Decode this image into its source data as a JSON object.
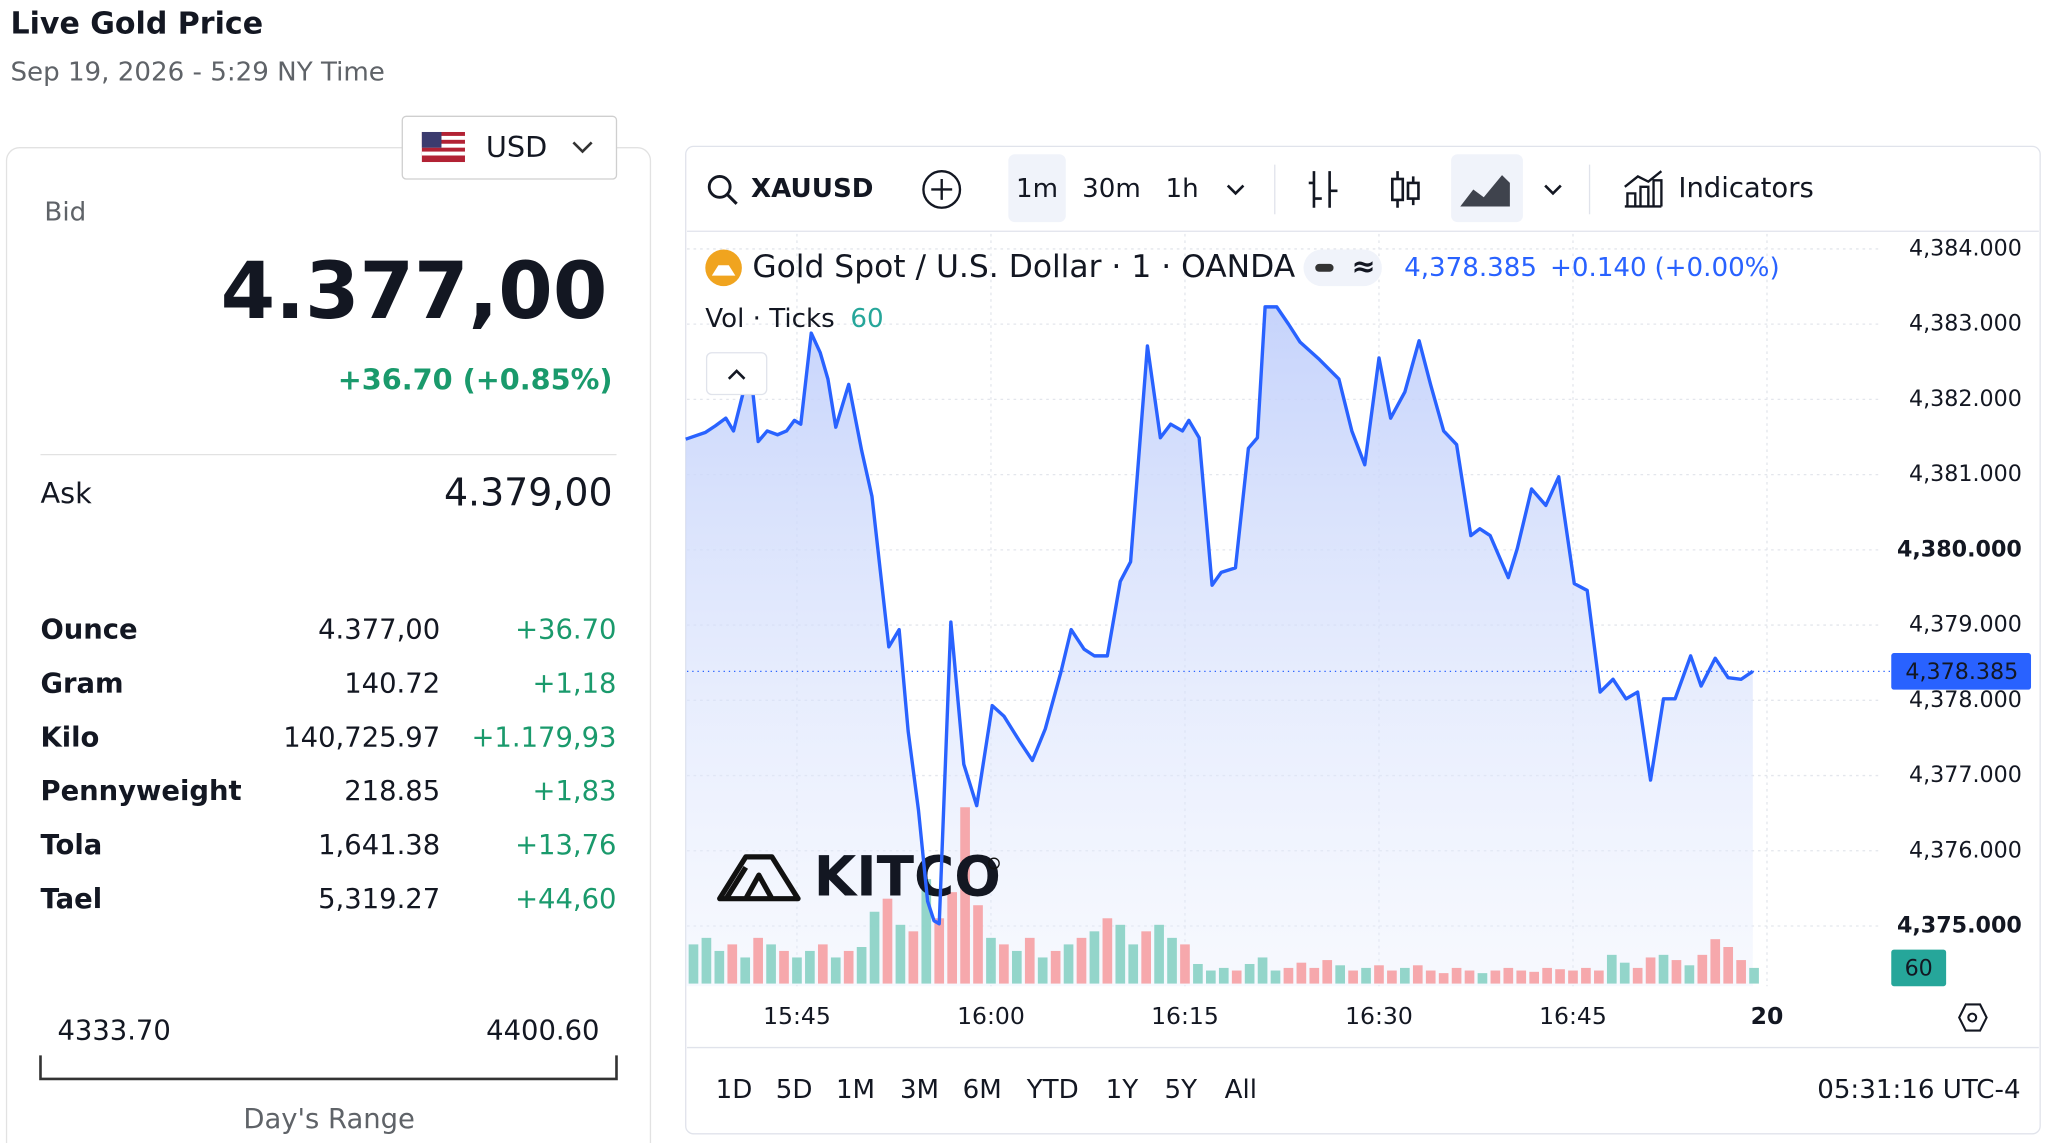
{
  "header": {
    "title": "Live Gold Price",
    "datetime": "Sep 19, 2026 - 5:29 NY Time"
  },
  "quote": {
    "currency": "USD",
    "bid_label": "Bid",
    "bid": "4.377,00",
    "change": "+36.70 (+0.85%)",
    "ask_label": "Ask",
    "ask": "4.379,00"
  },
  "units": {
    "rows": [
      [
        "Ounce",
        "4.377,00",
        "+36.70"
      ],
      [
        "Gram",
        "140.72",
        "+1,18"
      ],
      [
        "Kilo",
        "140,725.97",
        "+1.179,93"
      ],
      [
        "Pennyweight",
        "218.85",
        "+1,83"
      ],
      [
        "Tola",
        "1,641.38",
        "+13,76"
      ],
      [
        "Tael",
        "5,319.27",
        "+44,60"
      ]
    ]
  },
  "range": {
    "low": "4333.70",
    "high": "4400.60",
    "label": "Day's Range"
  },
  "toolbar": {
    "symbol": "XAUUSD",
    "intervals": [
      "1m",
      "30m",
      "1h"
    ],
    "indicators": "Indicators"
  },
  "footer": {
    "periods": [
      "1D",
      "5D",
      "1M",
      "3M",
      "6M",
      "YTD",
      "1Y",
      "5Y",
      "All"
    ],
    "clock": "05:31:16 UTC-4"
  },
  "logo": "KITCO",
  "chart_data": {
    "type": "area",
    "title": "Gold Spot / U.S. Dollar · 1 · OANDA",
    "change": "+0.140",
    "change_pct": "(+0.00%)",
    "last": {
      "value": 4378.385,
      "label": "4,378.385"
    },
    "color": "#2962ff",
    "x": [
      936.4,
      937.9,
      938.7,
      939.5,
      940.1,
      941.0,
      941.5,
      942.0,
      942.7,
      943.5,
      944.2,
      944.8,
      945.3,
      946.1,
      946.8,
      947.4,
      948.0,
      949.0,
      950.0,
      950.8,
      952.1,
      952.9,
      953.6,
      954.4,
      955.1,
      955.6,
      956.0,
      956.9,
      957.9,
      958.9,
      960.1,
      961.0,
      962.2,
      963.2,
      964.2,
      965.4,
      966.2,
      967.2,
      968.0,
      969.0,
      970.0,
      970.8,
      972.1,
      973.1,
      973.9,
      974.8,
      975.3,
      976.1,
      977.1,
      977.8,
      978.9,
      979.9,
      980.6,
      981.2,
      982.1,
      983.0,
      983.9,
      985.4,
      986.9,
      987.9,
      988.9,
      990.0,
      990.9,
      992.0,
      993.1,
      994.0,
      995.0,
      996.0,
      997.1,
      997.8,
      998.6,
      1000.0,
      1000.7,
      1001.8,
      1002.9,
      1003.9,
      1005.1,
      1006.1,
      1007.1,
      1008.1,
      1009.1,
      1010.0,
      1011.0,
      1012.0,
      1012.9,
      1014.1,
      1014.9,
      1016.0,
      1017.0,
      1018.0,
      1018.9
    ],
    "values": [
      4381.47,
      4381.56,
      4381.65,
      4381.75,
      4381.58,
      4382.2,
      4382.24,
      4381.44,
      4381.58,
      4381.53,
      4381.58,
      4381.72,
      4381.67,
      4382.88,
      4382.62,
      4382.27,
      4381.63,
      4382.2,
      4381.32,
      4380.71,
      4378.71,
      4378.94,
      4377.59,
      4376.54,
      4375.33,
      4375.07,
      4375.03,
      4379.04,
      4377.15,
      4376.6,
      4377.93,
      4377.79,
      4377.46,
      4377.2,
      4377.62,
      4378.37,
      4378.94,
      4378.68,
      4378.59,
      4378.59,
      4379.58,
      4379.84,
      4382.71,
      4381.49,
      4381.67,
      4381.58,
      4381.72,
      4381.49,
      4379.53,
      4379.7,
      4379.76,
      4381.35,
      4381.49,
      4383.23,
      4383.23,
      4383.0,
      4382.76,
      4382.53,
      4382.27,
      4381.58,
      4381.13,
      4382.55,
      4381.75,
      4382.1,
      4382.78,
      4382.19,
      4381.58,
      4381.4,
      4380.19,
      4380.28,
      4380.19,
      4379.63,
      4380.02,
      4380.81,
      4380.59,
      4380.97,
      4379.55,
      4379.46,
      4378.11,
      4378.28,
      4378.02,
      4378.11,
      4376.94,
      4378.02,
      4378.02,
      4378.59,
      4378.19,
      4378.56,
      4378.3,
      4378.28,
      4378.385
    ],
    "xlim": [
      936.4,
      1028.8
    ],
    "xticks": [
      {
        "value": 945,
        "label": "15:45"
      },
      {
        "value": 960,
        "label": "16:00"
      },
      {
        "value": 975,
        "label": "16:15"
      },
      {
        "value": 990,
        "label": "16:30"
      },
      {
        "value": 1005,
        "label": "16:45"
      },
      {
        "value": 1020,
        "label": "20"
      }
    ],
    "ylim": [
      4374.2,
      4384.2
    ],
    "yticks": [
      {
        "value": 4375,
        "label": "4,375.000"
      },
      {
        "value": 4376,
        "label": "4,376.000"
      },
      {
        "value": 4377,
        "label": "4,377.000"
      },
      {
        "value": 4378,
        "label": "4,378.000"
      },
      {
        "value": 4379,
        "label": "4,379.000"
      },
      {
        "value": 4380,
        "label": "4,380.000"
      },
      {
        "value": 4381,
        "label": "4,381.000"
      },
      {
        "value": 4382,
        "label": "4,382.000"
      },
      {
        "value": 4383,
        "label": "4,383.000"
      },
      {
        "value": 4384,
        "label": "4,384.000"
      }
    ],
    "grid": true,
    "volume": {
      "label": "Vol · Ticks",
      "ylim": [
        0,
        2880
      ],
      "x": [
        937,
        938,
        939,
        940,
        941,
        942,
        943,
        944,
        945,
        946,
        947,
        948,
        949,
        950,
        951,
        952,
        953,
        954,
        955,
        956,
        957,
        958,
        959,
        960,
        961,
        962,
        963,
        964,
        965,
        966,
        967,
        968,
        969,
        970,
        971,
        972,
        973,
        974,
        975,
        976,
        977,
        978,
        979,
        980,
        981,
        982,
        983,
        984,
        985,
        986,
        987,
        988,
        989,
        990,
        991,
        992,
        993,
        994,
        995,
        996,
        997,
        998,
        999,
        1000,
        1001,
        1002,
        1003,
        1004,
        1005,
        1006,
        1007,
        1008,
        1009,
        1010,
        1011,
        1012,
        1013,
        1014,
        1015,
        1016,
        1017,
        1018,
        1019
      ],
      "values": [
        150,
        175,
        125,
        150,
        100,
        175,
        150,
        125,
        100,
        125,
        150,
        100,
        125,
        140,
        275,
        325,
        225,
        200,
        400,
        250,
        350,
        675,
        300,
        175,
        150,
        125,
        175,
        100,
        125,
        150,
        175,
        200,
        250,
        225,
        150,
        200,
        225,
        175,
        150,
        75,
        50,
        60,
        50,
        75,
        100,
        50,
        60,
        80,
        60,
        90,
        70,
        50,
        60,
        70,
        50,
        60,
        70,
        50,
        40,
        60,
        50,
        40,
        50,
        60,
        50,
        45,
        60,
        55,
        50,
        60,
        50,
        110,
        80,
        60,
        100,
        110,
        90,
        70,
        110,
        170,
        140,
        90,
        60
      ],
      "colors": [
        "#8dd3c7",
        "#8dd3c7",
        "#8dd3c7",
        "#f5a3a8",
        "#8dd3c7",
        "#f5a3a8",
        "#8dd3c7",
        "#f5a3a8",
        "#8dd3c7",
        "#8dd3c7",
        "#f5a3a8",
        "#8dd3c7",
        "#f5a3a8",
        "#8dd3c7",
        "#8dd3c7",
        "#f5a3a8",
        "#8dd3c7",
        "#f5a3a8",
        "#8dd3c7",
        "#f5a3a8",
        "#f5a3a8",
        "#f5a3a8",
        "#f5a3a8",
        "#8dd3c7",
        "#f5a3a8",
        "#8dd3c7",
        "#f5a3a8",
        "#8dd3c7",
        "#f5a3a8",
        "#8dd3c7",
        "#f5a3a8",
        "#8dd3c7",
        "#f5a3a8",
        "#8dd3c7",
        "#8dd3c7",
        "#f5a3a8",
        "#8dd3c7",
        "#8dd3c7",
        "#f5a3a8",
        "#8dd3c7",
        "#8dd3c7",
        "#8dd3c7",
        "#f5a3a8",
        "#8dd3c7",
        "#8dd3c7",
        "#8dd3c7",
        "#f5a3a8",
        "#f5a3a8",
        "#f5a3a8",
        "#f5a3a8",
        "#8dd3c7",
        "#f5a3a8",
        "#8dd3c7",
        "#f5a3a8",
        "#f5a3a8",
        "#8dd3c7",
        "#f5a3a8",
        "#f5a3a8",
        "#f5a3a8",
        "#f5a3a8",
        "#f5a3a8",
        "#8dd3c7",
        "#f5a3a8",
        "#f5a3a8",
        "#f5a3a8",
        "#f5a3a8",
        "#f5a3a8",
        "#f5a3a8",
        "#f5a3a8",
        "#f5a3a8",
        "#f5a3a8",
        "#8dd3c7",
        "#8dd3c7",
        "#f5a3a8",
        "#f5a3a8",
        "#8dd3c7",
        "#f5a3a8",
        "#8dd3c7",
        "#f5a3a8",
        "#f5a3a8",
        "#f5a3a8",
        "#f5a3a8",
        "#8dd3c7"
      ]
    }
  }
}
